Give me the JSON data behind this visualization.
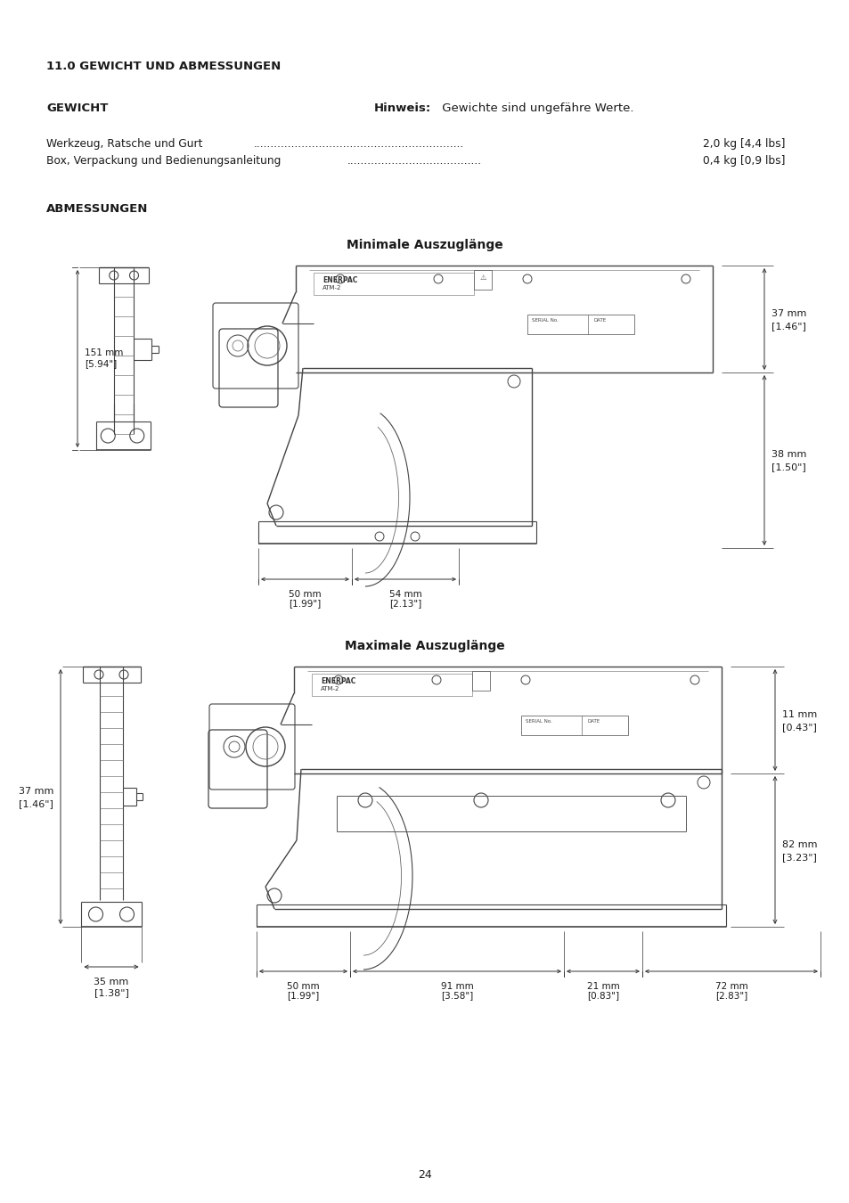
{
  "title_section": "11.0 GEWICHT UND ABMESSUNGEN",
  "gewicht_label": "GEWICHT",
  "hinweis_bold": "Hinweis:",
  "hinweis_text": " Gewichte sind ungefähre Werte.",
  "weight_line1_label": "Werkzeug, Ratsche und Gurt",
  "weight_line1_dots": ".............................................................",
  "weight_line1_value": "2,0 kg [4,4 lbs]",
  "weight_line2_label": "Box, Verpackung und Bedienungsanleitung",
  "weight_line2_dots": ".......................................",
  "weight_line2_value": "0,4 kg [0,9 lbs]",
  "abmessungen_label": "ABMESSUNGEN",
  "min_title": "Minimale Auszuglänge",
  "max_title": "Maximale Auszuglänge",
  "page_number": "24",
  "background_color": "#ffffff",
  "text_color": "#1a1a1a",
  "dim_color": "#333333",
  "line_color": "#444444"
}
